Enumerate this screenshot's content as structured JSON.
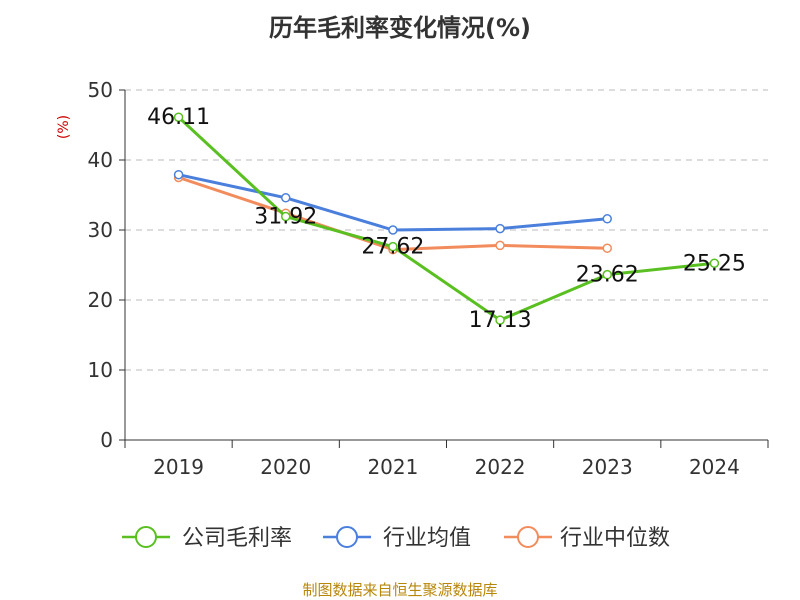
{
  "chart_data": {
    "type": "line",
    "title": "历年毛利率变化情况(%)",
    "ylabel": "(%)",
    "xlabel": "",
    "categories": [
      "2019",
      "2020",
      "2021",
      "2022",
      "2023",
      "2024"
    ],
    "ylim": [
      0,
      50
    ],
    "yticks": [
      0,
      10,
      20,
      30,
      40,
      50
    ],
    "grid": true,
    "legend": "bottom",
    "series": [
      {
        "name": "公司毛利率",
        "color": "#5ac021",
        "values": [
          46.11,
          31.92,
          27.62,
          17.13,
          23.62,
          25.25
        ],
        "labels": [
          "46.11",
          "31.92",
          "27.62",
          "17.13",
          "23.62",
          "25.25"
        ]
      },
      {
        "name": "行业均值",
        "color": "#4a7fdc",
        "values": [
          37.9,
          34.6,
          30.0,
          30.2,
          31.6,
          null
        ]
      },
      {
        "name": "行业中位数",
        "color": "#f28c5c",
        "values": [
          37.5,
          32.4,
          27.2,
          27.8,
          27.4,
          null
        ]
      }
    ]
  },
  "source": "制图数据来自恒生聚源数据库"
}
